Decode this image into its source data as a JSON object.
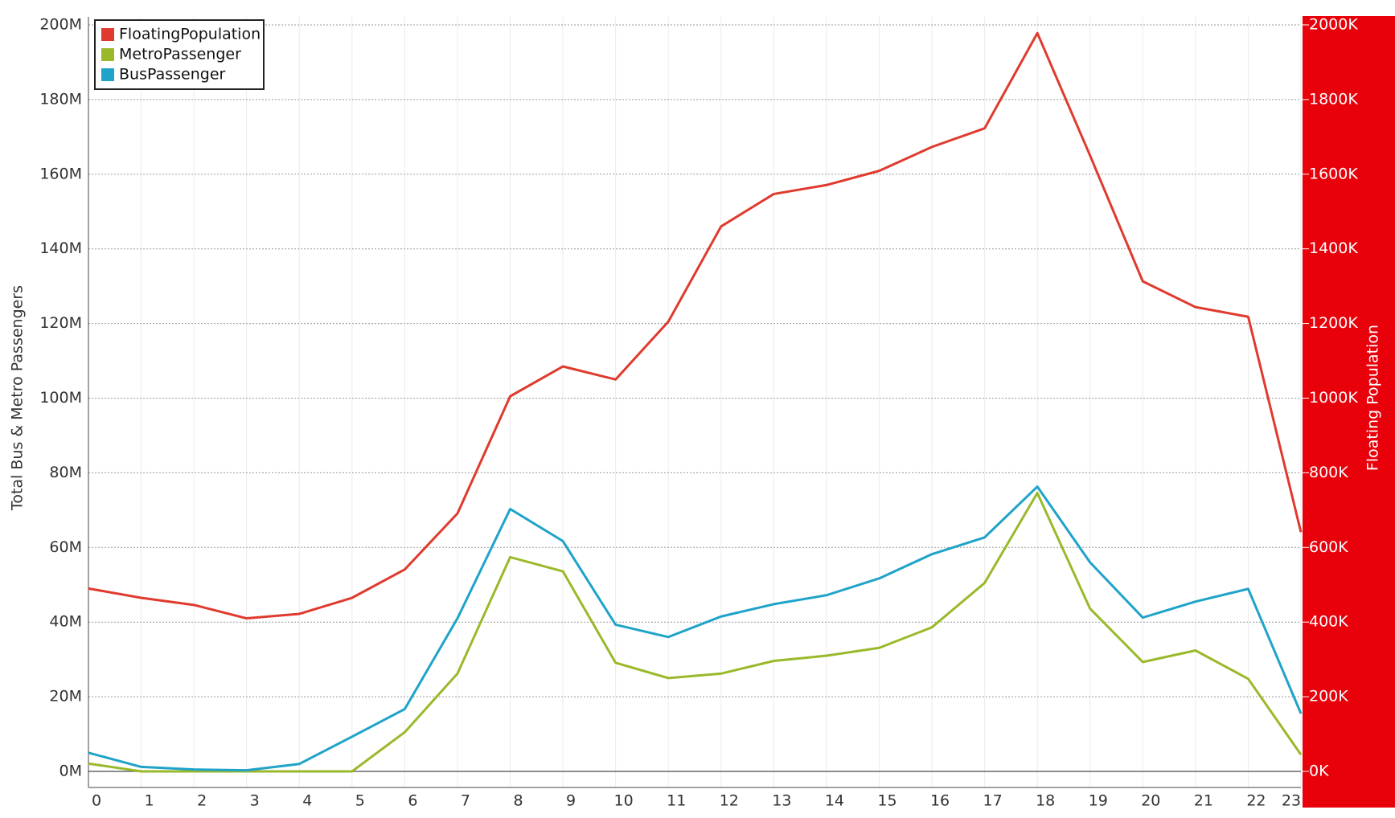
{
  "chart_data": {
    "type": "line",
    "y_label": "Total Bus & Metro Passengers",
    "y2_label": "Floating Population",
    "categories": [
      "0",
      "1",
      "2",
      "3",
      "4",
      "5",
      "6",
      "7",
      "8",
      "9",
      "10",
      "11",
      "12",
      "13",
      "14",
      "15",
      "16",
      "17",
      "18",
      "19",
      "20",
      "21",
      "22",
      "23"
    ],
    "series": [
      {
        "name": "FloatingPopulation",
        "color": "#e03a2e",
        "axis": "y2",
        "values": [
          490000,
          465000,
          446000,
          410000,
          422000,
          465000,
          541000,
          691000,
          1005000,
          1085000,
          1050000,
          1205000,
          1460000,
          1547000,
          1571000,
          1609000,
          1673000,
          1723000,
          1978000,
          1650000,
          1313000,
          1244000,
          1218000,
          641000
        ]
      },
      {
        "name": "MetroPassenger",
        "color": "#9ab92a",
        "values": [
          2100000,
          0,
          0,
          0,
          0,
          0,
          10500000,
          26200000,
          57400000,
          53600000,
          29100000,
          25000000,
          26200000,
          29600000,
          31000000,
          33100000,
          38600000,
          50500000,
          74600000,
          43600000,
          29300000,
          32400000,
          24800000,
          4500000
        ]
      },
      {
        "name": "BusPassenger",
        "color": "#1fa3c9",
        "values": [
          5000000,
          1200000,
          500000,
          300000,
          2000000,
          9300000,
          16700000,
          41000000,
          70300000,
          61700000,
          39300000,
          36000000,
          41500000,
          44800000,
          47200000,
          51700000,
          58200000,
          62700000,
          76300000,
          56000000,
          41200000,
          45500000,
          48900000,
          15500000
        ]
      }
    ],
    "ylim": [
      0,
      200000000
    ],
    "yticks": [
      {
        "value": 0,
        "label": "0M"
      },
      {
        "value": 20000000,
        "label": "20M"
      },
      {
        "value": 40000000,
        "label": "40M"
      },
      {
        "value": 60000000,
        "label": "60M"
      },
      {
        "value": 80000000,
        "label": "80M"
      },
      {
        "value": 100000000,
        "label": "100M"
      },
      {
        "value": 120000000,
        "label": "120M"
      },
      {
        "value": 140000000,
        "label": "140M"
      },
      {
        "value": 160000000,
        "label": "160M"
      },
      {
        "value": 180000000,
        "label": "180M"
      },
      {
        "value": 200000000,
        "label": "200M"
      }
    ],
    "y2lim": [
      0,
      2000000
    ],
    "y2ticks": [
      {
        "value": 0,
        "label": "0K"
      },
      {
        "value": 200000,
        "label": "200K"
      },
      {
        "value": 400000,
        "label": "400K"
      },
      {
        "value": 600000,
        "label": "600K"
      },
      {
        "value": 800000,
        "label": "800K"
      },
      {
        "value": 1000000,
        "label": "1000K"
      },
      {
        "value": 1200000,
        "label": "1200K"
      },
      {
        "value": 1400000,
        "label": "1400K"
      },
      {
        "value": 1600000,
        "label": "1600K"
      },
      {
        "value": 1800000,
        "label": "1800K"
      },
      {
        "value": 2000000,
        "label": "2000K"
      }
    ],
    "y2_axis_color": "#e8000b",
    "grid": true,
    "legend": "upper-left"
  }
}
